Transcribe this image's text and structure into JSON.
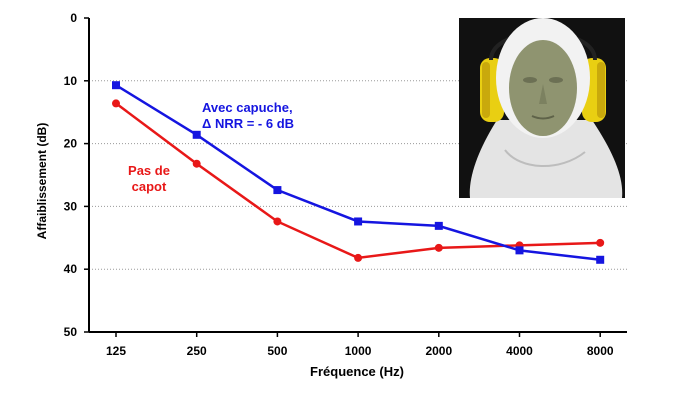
{
  "chart_data": {
    "type": "line",
    "xlabel": "Fréquence (Hz)",
    "ylabel": "Affaiblissement (dB)",
    "categories": [
      "125",
      "250",
      "500",
      "1000",
      "2000",
      "4000",
      "8000"
    ],
    "yticks": [
      "0",
      "10",
      "20",
      "30",
      "40",
      "50"
    ],
    "ylim": [
      0,
      50
    ],
    "y_inverted": true,
    "grid": "horizontal dotted",
    "series": [
      {
        "name": "Avec capuche, Δ NRR = - 6 dB",
        "label_lines": [
          "Avec capuche,",
          "Δ NRR = - 6 dB"
        ],
        "color": "#1515e0",
        "marker": "square",
        "values": [
          10.7,
          18.6,
          27.4,
          32.4,
          33.1,
          37.0,
          38.5
        ]
      },
      {
        "name": "Pas de capot",
        "label_lines": [
          "Pas de",
          "capot"
        ],
        "color": "#e81818",
        "marker": "circle",
        "values": [
          13.6,
          23.2,
          32.4,
          38.2,
          36.6,
          36.2,
          35.8
        ]
      }
    ]
  },
  "photo": {
    "subject": "mannequin-head-with-hood-and-earmuffs",
    "colors": {
      "background": "#111111",
      "face": "#8f9470",
      "hood": "#ececec",
      "earmuff": "#e9cf12"
    }
  }
}
